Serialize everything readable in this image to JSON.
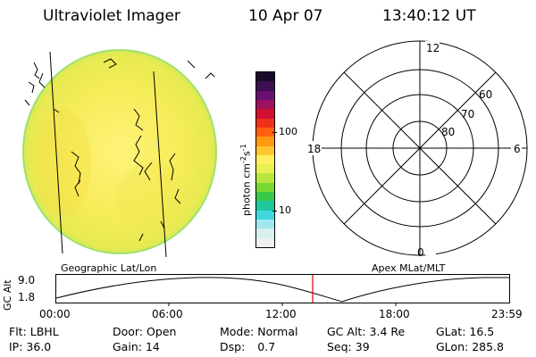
{
  "header": {
    "instrument": "Ultraviolet Imager",
    "date": "10 Apr 07",
    "time": "13:40:12 UT"
  },
  "colorbar": {
    "unit_label": "photon cm",
    "unit_exp1": "-2",
    "unit_mid": "s",
    "unit_exp2": "-1",
    "ticks": [
      "100",
      "10"
    ],
    "colors": [
      "#1a0a2a",
      "#3a1050",
      "#6a1070",
      "#a01060",
      "#d01030",
      "#f03018",
      "#ff6010",
      "#ff9a10",
      "#ffc830",
      "#fff060",
      "#e8f050",
      "#b8e840",
      "#78d830",
      "#38c848",
      "#20c8a0",
      "#40d8e0",
      "#a0e8f0",
      "#d8f0f0",
      "#f0f0f0"
    ]
  },
  "left_panel": {
    "label": "Geographic Lat/Lon"
  },
  "right_panel": {
    "label": "Apex  MLat/MLT",
    "mlt_labels": {
      "top": "12",
      "left": "18",
      "right": "6",
      "bottom": "0"
    },
    "lat_labels": [
      "60",
      "70",
      "80"
    ]
  },
  "altitude_plot": {
    "ylabel": "GC Alt",
    "yticks": [
      "9.0",
      "1.8"
    ],
    "xticks": [
      "00:00",
      "06:00",
      "12:00",
      "18:00",
      "23:59"
    ],
    "current_time_color": "#e00000"
  },
  "status": {
    "flt_label": "Flt:",
    "flt_value": "LBHL",
    "ip_label": "IP:",
    "ip_value": "36.0",
    "door_label": "Door:",
    "door_value": "Open",
    "gain_label": "Gain:",
    "gain_value": "14",
    "mode_label": "Mode:",
    "mode_value": "Normal",
    "dsp_label": "Dsp:",
    "dsp_value": "0.7",
    "gcalt_label": "GC Alt:",
    "gcalt_value": "3.4 Re",
    "seq_label": "Seq:",
    "seq_value": "39",
    "glat_label": "GLat:",
    "glat_value": "16.5",
    "glon_label": "GLon:",
    "glon_value": "285.8"
  }
}
